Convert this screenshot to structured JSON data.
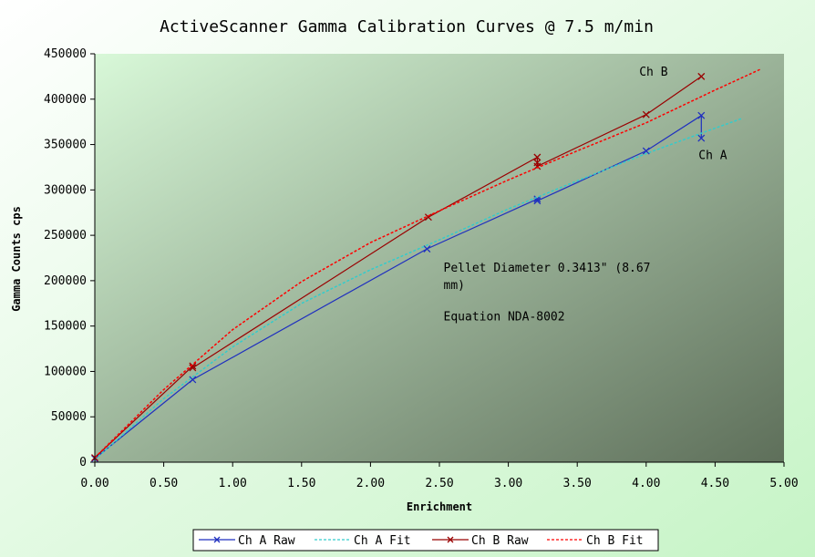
{
  "chart_data": {
    "type": "line",
    "title": "ActiveScanner Gamma Calibration Curves @ 7.5 m/min",
    "xlabel": "Enrichment",
    "ylabel": "Gamma Counts cps",
    "xlim": [
      0,
      5
    ],
    "ylim": [
      0,
      450000
    ],
    "x_ticks": [
      "0.00",
      "0.50",
      "1.00",
      "1.50",
      "2.00",
      "2.50",
      "3.00",
      "3.50",
      "4.00",
      "4.50",
      "5.00"
    ],
    "y_ticks": [
      "0",
      "50000",
      "100000",
      "150000",
      "200000",
      "250000",
      "300000",
      "350000",
      "400000",
      "450000"
    ],
    "legend_position": "bottom",
    "series": [
      {
        "name": "Ch A Raw",
        "style": "solid",
        "marker": "x",
        "color": "#1f2fbf",
        "points": [
          [
            0,
            4000
          ],
          [
            0.71,
            91000
          ],
          [
            2.41,
            235000
          ],
          [
            3.21,
            290000
          ],
          [
            3.21,
            288000
          ],
          [
            4.0,
            343000
          ],
          [
            4.4,
            382000
          ],
          [
            4.4,
            357000
          ]
        ]
      },
      {
        "name": "Ch A Fit",
        "style": "dotted",
        "marker": "none",
        "color": "#33cccc",
        "points": [
          [
            0,
            3000
          ],
          [
            0.5,
            70000
          ],
          [
            1.0,
            127000
          ],
          [
            1.5,
            175000
          ],
          [
            2.0,
            212000
          ],
          [
            2.5,
            245000
          ],
          [
            3.0,
            279000
          ],
          [
            3.5,
            310000
          ],
          [
            4.0,
            340000
          ],
          [
            4.5,
            368000
          ],
          [
            4.7,
            379000
          ]
        ]
      },
      {
        "name": "Ch B Raw",
        "style": "solid",
        "marker": "x",
        "color": "#990000",
        "points": [
          [
            0,
            5000
          ],
          [
            0.71,
            106000
          ],
          [
            0.71,
            104000
          ],
          [
            2.42,
            270000
          ],
          [
            3.21,
            336000
          ],
          [
            3.21,
            330000
          ],
          [
            3.21,
            326000
          ],
          [
            4.0,
            383000
          ],
          [
            4.4,
            425000
          ]
        ]
      },
      {
        "name": "Ch B Fit",
        "style": "dotted",
        "marker": "none",
        "color": "#ff0000",
        "points": [
          [
            0,
            5000
          ],
          [
            0.5,
            80000
          ],
          [
            1.0,
            146000
          ],
          [
            1.5,
            199000
          ],
          [
            2.0,
            242000
          ],
          [
            2.5,
            277000
          ],
          [
            3.0,
            311000
          ],
          [
            3.5,
            343000
          ],
          [
            4.0,
            374000
          ],
          [
            4.5,
            410000
          ],
          [
            4.83,
            433000
          ]
        ]
      }
    ],
    "annotations": [
      {
        "text": "Ch B",
        "x": 3.95,
        "y": 426000
      },
      {
        "text": "Ch A",
        "x": 4.38,
        "y": 334000
      },
      {
        "text": "Pellet Diameter 0.3413\" (8.67",
        "x": 2.53,
        "y": 210000
      },
      {
        "text": "mm)",
        "x": 2.53,
        "y": 191000
      },
      {
        "text": "Equation NDA-8002",
        "x": 2.53,
        "y": 156000
      }
    ]
  },
  "colors": {
    "outer_gradient_start": "#ffffff",
    "outer_gradient_end": "#c6f4c6",
    "plot_gradient_start": "#d8f8d8",
    "plot_gradient_end": "#5e6f5a",
    "axis": "#000000"
  }
}
